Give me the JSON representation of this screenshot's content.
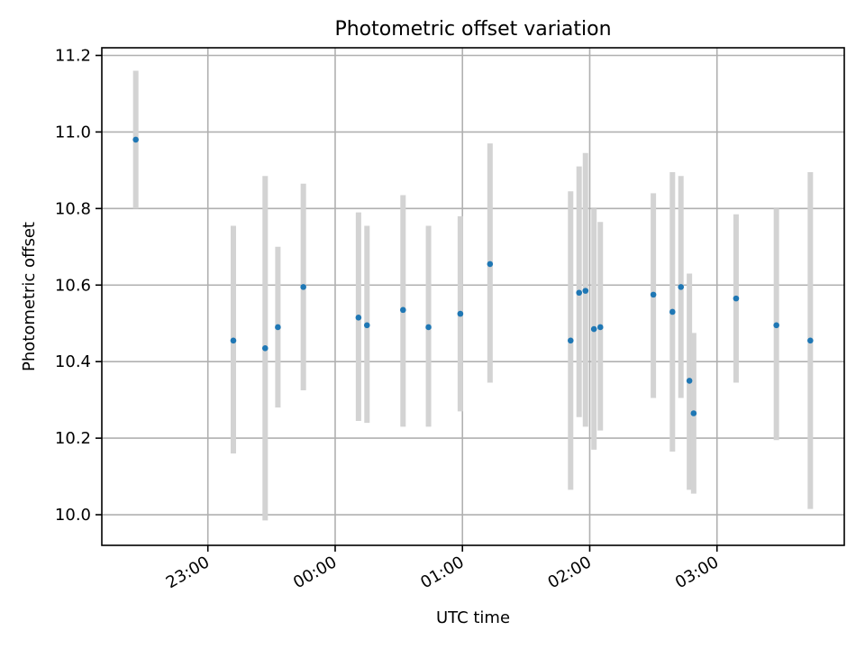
{
  "chart_data": {
    "type": "scatter",
    "title": "Photometric offset variation",
    "xlabel": "UTC time",
    "ylabel": "Photometric offset",
    "x_axis_type": "time",
    "xlim": [
      "22:10",
      "04:00"
    ],
    "ylim": [
      9.92,
      11.22
    ],
    "x_ticks": [
      "23:00",
      "00:00",
      "01:00",
      "02:00",
      "03:00"
    ],
    "y_ticks": [
      "10.0",
      "10.2",
      "10.4",
      "10.6",
      "10.8",
      "11.0",
      "11.2"
    ],
    "grid": true,
    "marker_color": "#1f77b4",
    "errorbar_color": "#d3d3d3",
    "points": [
      {
        "t": "22:26",
        "y": 10.98,
        "ylow": 10.8,
        "yhigh": 11.16
      },
      {
        "t": "23:12",
        "y": 10.455,
        "ylow": 10.16,
        "yhigh": 10.755
      },
      {
        "t": "23:27",
        "y": 10.435,
        "ylow": 9.985,
        "yhigh": 10.885
      },
      {
        "t": "23:33",
        "y": 10.49,
        "ylow": 10.28,
        "yhigh": 10.7
      },
      {
        "t": "23:45",
        "y": 10.595,
        "ylow": 10.325,
        "yhigh": 10.865
      },
      {
        "t": "00:11",
        "y": 10.515,
        "ylow": 10.245,
        "yhigh": 10.79
      },
      {
        "t": "00:15",
        "y": 10.495,
        "ylow": 10.24,
        "yhigh": 10.755
      },
      {
        "t": "00:32",
        "y": 10.535,
        "ylow": 10.23,
        "yhigh": 10.835
      },
      {
        "t": "00:44",
        "y": 10.49,
        "ylow": 10.23,
        "yhigh": 10.755
      },
      {
        "t": "00:59",
        "y": 10.525,
        "ylow": 10.27,
        "yhigh": 10.78
      },
      {
        "t": "01:13",
        "y": 10.655,
        "ylow": 10.345,
        "yhigh": 10.97
      },
      {
        "t": "01:51",
        "y": 10.455,
        "ylow": 10.065,
        "yhigh": 10.845
      },
      {
        "t": "01:55",
        "y": 10.58,
        "ylow": 10.255,
        "yhigh": 10.91
      },
      {
        "t": "01:58",
        "y": 10.585,
        "ylow": 10.23,
        "yhigh": 10.945
      },
      {
        "t": "02:02",
        "y": 10.485,
        "ylow": 10.17,
        "yhigh": 10.8
      },
      {
        "t": "02:05",
        "y": 10.49,
        "ylow": 10.22,
        "yhigh": 10.765
      },
      {
        "t": "02:30",
        "y": 10.575,
        "ylow": 10.305,
        "yhigh": 10.84
      },
      {
        "t": "02:39",
        "y": 10.53,
        "ylow": 10.165,
        "yhigh": 10.895
      },
      {
        "t": "02:43",
        "y": 10.595,
        "ylow": 10.305,
        "yhigh": 10.885
      },
      {
        "t": "02:47",
        "y": 10.35,
        "ylow": 10.065,
        "yhigh": 10.63
      },
      {
        "t": "02:49",
        "y": 10.265,
        "ylow": 10.055,
        "yhigh": 10.475
      },
      {
        "t": "03:09",
        "y": 10.565,
        "ylow": 10.345,
        "yhigh": 10.785
      },
      {
        "t": "03:28",
        "y": 10.495,
        "ylow": 10.195,
        "yhigh": 10.8
      },
      {
        "t": "03:44",
        "y": 10.455,
        "ylow": 10.015,
        "yhigh": 10.895
      }
    ]
  }
}
